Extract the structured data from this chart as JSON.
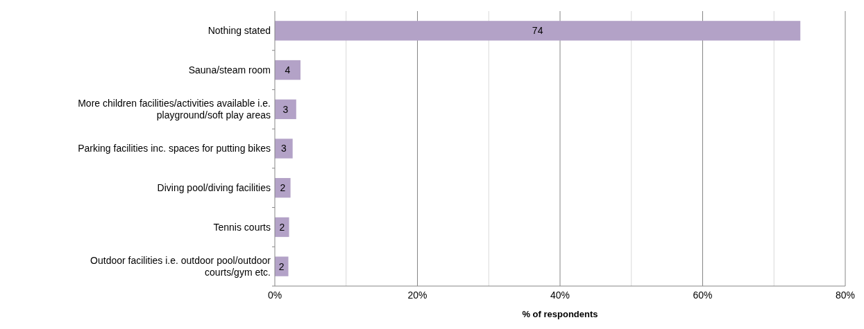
{
  "chart_data": {
    "type": "bar",
    "orientation": "horizontal",
    "xlabel": "% of respondents",
    "categories": [
      "Nothing stated",
      "Sauna/steam room",
      "More children facilities/activities available i.e. playground/soft play areas",
      "Parking facilities inc. spaces for putting bikes",
      "Diving pool/diving facilities",
      "Tennis courts",
      "Outdoor facilities i.e. outdoor pool/outdoor courts/gym etc."
    ],
    "values": [
      73.7,
      3.6,
      3.0,
      2.5,
      2.2,
      2.0,
      1.9
    ],
    "value_labels": [
      "74",
      "4",
      "3",
      "3",
      "2",
      "2",
      "2"
    ],
    "color": "#b3a2c7",
    "xlim": [
      0,
      80
    ],
    "xticks": [
      {
        "value": 0,
        "label": "0%"
      },
      {
        "value": 10,
        "label": null
      },
      {
        "value": 20,
        "label": "20%"
      },
      {
        "value": 30,
        "label": null
      },
      {
        "value": 40,
        "label": "40%"
      },
      {
        "value": 50,
        "label": null
      },
      {
        "value": 60,
        "label": "60%"
      },
      {
        "value": 70,
        "label": null
      },
      {
        "value": 80,
        "label": "80%"
      }
    ],
    "grid": "x"
  }
}
